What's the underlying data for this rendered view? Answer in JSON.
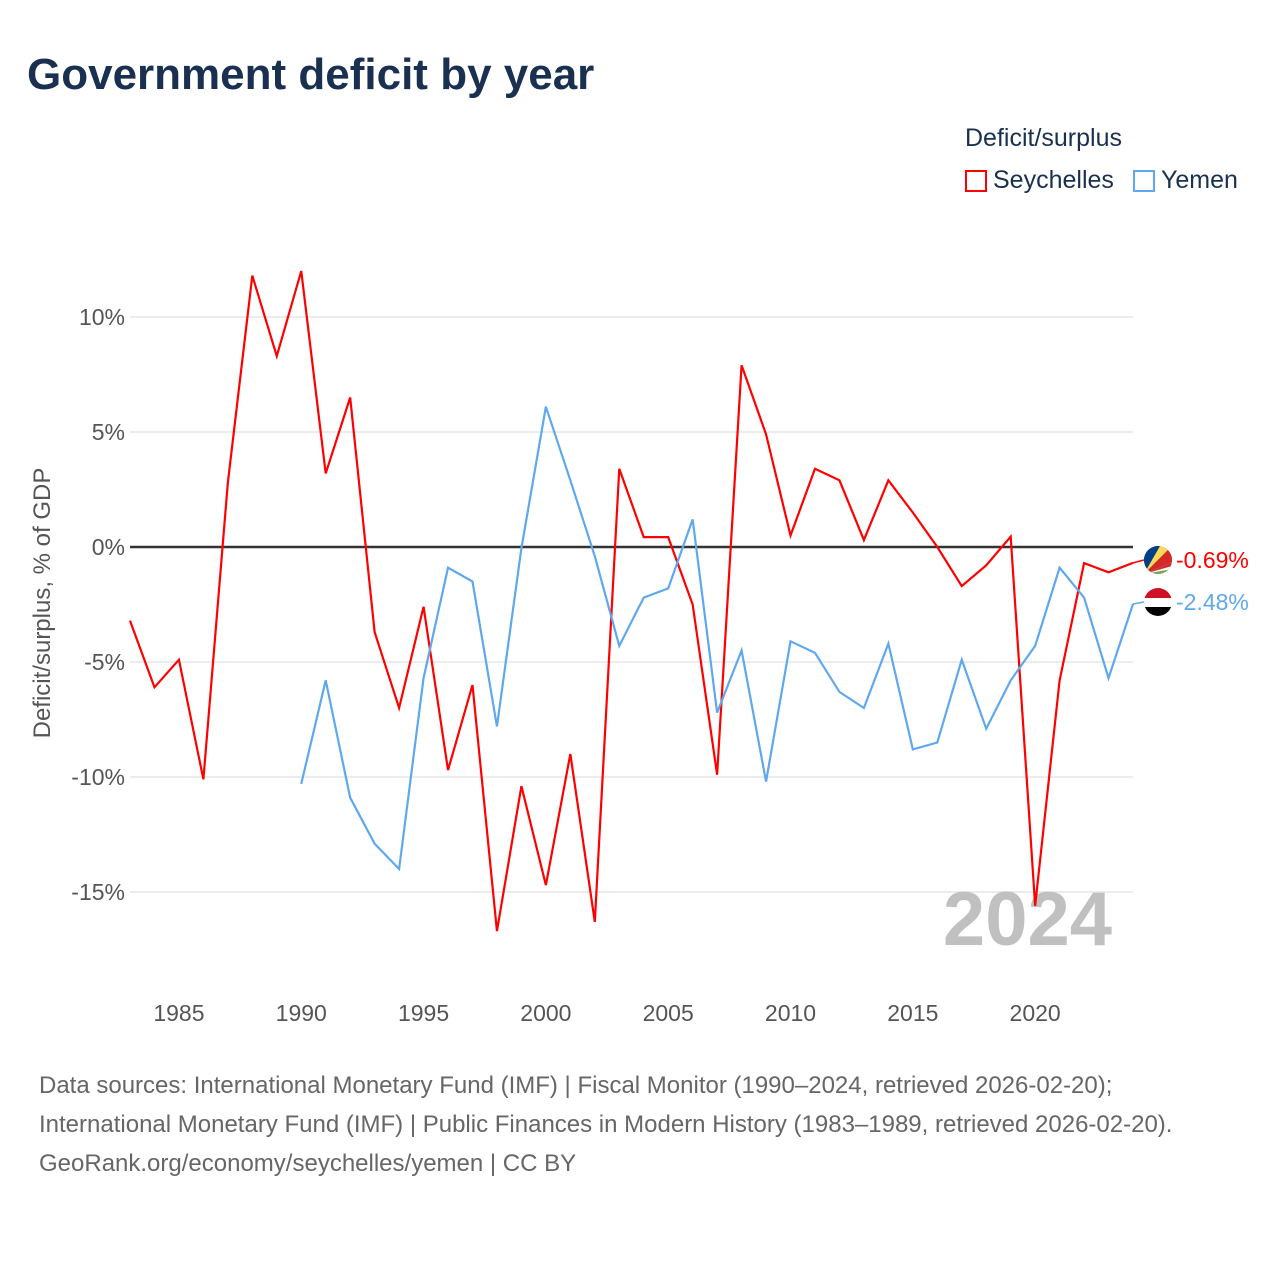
{
  "title": "Government deficit by year",
  "chart_data": {
    "type": "line",
    "title": "Government deficit by year",
    "ylabel": "Deficit/surplus, % of GDP",
    "xlabel": "",
    "legend_title": "Deficit/surplus",
    "legend_position": "top-right",
    "xlim": [
      1983,
      2024
    ],
    "ylim": [
      -18,
      13
    ],
    "x_ticks": [
      1985,
      1990,
      1995,
      2000,
      2005,
      2010,
      2015,
      2020
    ],
    "y_ticks": [
      10,
      5,
      0,
      -5,
      -10,
      -15
    ],
    "y_tick_labels": [
      "10%",
      "5%",
      "0%",
      "-5%",
      "-10%",
      "-15%"
    ],
    "grid": true,
    "year_watermark": "2024",
    "series": [
      {
        "name": "Seychelles",
        "color": "#ff0000",
        "end_label": "-0.69%",
        "x": [
          1983,
          1984,
          1985,
          1986,
          1987,
          1988,
          1989,
          1990,
          1991,
          1992,
          1993,
          1994,
          1995,
          1996,
          1997,
          1998,
          1999,
          2000,
          2001,
          2002,
          2003,
          2004,
          2005,
          2006,
          2007,
          2008,
          2009,
          2010,
          2011,
          2012,
          2013,
          2014,
          2015,
          2016,
          2017,
          2018,
          2019,
          2020,
          2021,
          2022,
          2023,
          2024
        ],
        "values": [
          -3.2,
          -6.1,
          -4.9,
          -10.1,
          2.8,
          11.8,
          8.3,
          12.0,
          3.2,
          6.5,
          -3.7,
          -7.0,
          -2.6,
          -9.7,
          -6.0,
          -16.7,
          -10.4,
          -14.7,
          -9.0,
          -16.3,
          3.4,
          0.43,
          0.43,
          -2.5,
          -9.9,
          7.9,
          4.9,
          0.5,
          3.4,
          2.9,
          0.3,
          2.9,
          1.5,
          0.0,
          -1.7,
          -0.8,
          0.45,
          -15.6,
          -5.8,
          -0.7,
          -1.1,
          -0.69
        ]
      },
      {
        "name": "Yemen",
        "color": "#5fa8ee",
        "end_label": "-2.48%",
        "x": [
          1990,
          1991,
          1992,
          1993,
          1994,
          1995,
          1996,
          1997,
          1998,
          1999,
          2000,
          2001,
          2002,
          2003,
          2004,
          2005,
          2006,
          2007,
          2008,
          2009,
          2010,
          2011,
          2012,
          2013,
          2014,
          2015,
          2016,
          2017,
          2018,
          2019,
          2020,
          2021,
          2022,
          2023,
          2024
        ],
        "values": [
          -10.3,
          -5.8,
          -10.9,
          -12.9,
          -14.0,
          -5.7,
          -0.9,
          -1.5,
          -7.8,
          -0.05,
          6.1,
          2.9,
          -0.4,
          -4.3,
          -2.2,
          -1.8,
          1.2,
          -7.2,
          -4.5,
          -10.2,
          -4.1,
          -4.6,
          -6.3,
          -7.0,
          -4.2,
          -8.8,
          -8.5,
          -4.9,
          -7.9,
          -5.8,
          -4.3,
          -0.9,
          -2.2,
          -5.7,
          -2.48
        ]
      }
    ]
  },
  "sources": {
    "line1": "Data sources: International Monetary Fund (IMF) | Fiscal Monitor (1990–2024, retrieved 2026-02-20); International Monetary Fund (IMF) | Public Finances in Modern History (1983–1989, retrieved 2026-02-20).",
    "line2": "GeoRank.org/economy/seychelles/yemen | CC BY"
  }
}
